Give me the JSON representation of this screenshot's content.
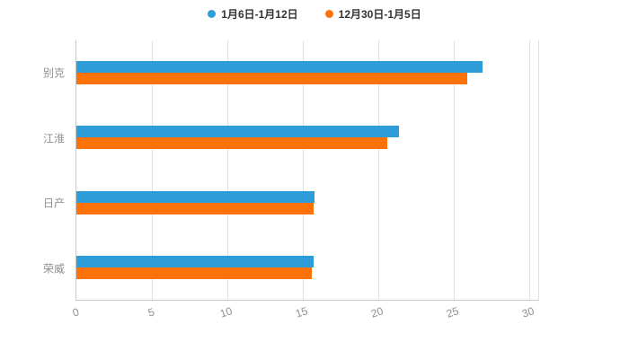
{
  "legend": [
    {
      "label": "1月6日-1月12日",
      "color": "#2E9CD9"
    },
    {
      "label": "12月30日-1月5日",
      "color": "#FC7208"
    }
  ],
  "chart_data": {
    "type": "bar",
    "orientation": "horizontal",
    "title": "",
    "xlabel": "",
    "ylabel": "",
    "categories": [
      "别克",
      "江淮",
      "日产",
      "荣威"
    ],
    "series": [
      {
        "name": "1月6日-1月12日",
        "color": "#2E9CD9",
        "values": [
          26.9,
          21.4,
          15.8,
          15.7
        ]
      },
      {
        "name": "12月30日-1月5日",
        "color": "#FC7208",
        "values": [
          25.9,
          20.6,
          15.7,
          15.6
        ]
      }
    ],
    "xticks": [
      0,
      5,
      10,
      15,
      20,
      25,
      30
    ],
    "xlim": [
      0,
      30.6
    ],
    "grid": true,
    "legend_position": "top"
  }
}
